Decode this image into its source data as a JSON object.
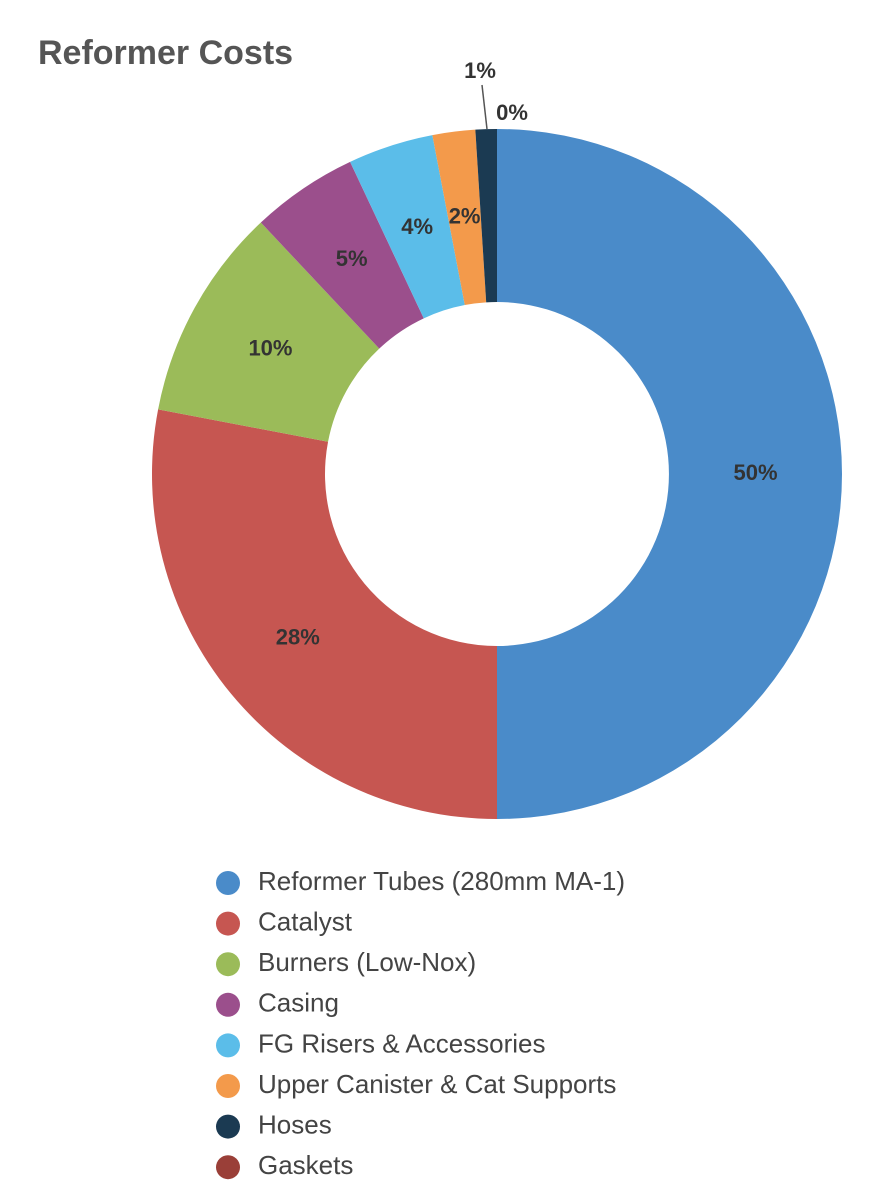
{
  "chart_data": {
    "type": "donut",
    "title": "Reformer Costs",
    "categories": [
      "Reformer Tubes (280mm  MA-1)",
      "Catalyst",
      "Burners (Low-Nox)",
      "Casing",
      "FG Risers & Accessories",
      "Upper Canister & Cat Supports",
      "Hoses",
      "Gaskets"
    ],
    "values": [
      50,
      28,
      10,
      5,
      4,
      2,
      1,
      0
    ],
    "value_labels": [
      "50%",
      "28%",
      "10%",
      "5%",
      "4%",
      "2%",
      "1%",
      "0%"
    ],
    "colors": [
      "#4a8bc9",
      "#c65651",
      "#9bbb59",
      "#9b4f8c",
      "#5bbde9",
      "#f39a4b",
      "#1b3a52",
      "#9a3f38"
    ],
    "legend": "bottom"
  }
}
